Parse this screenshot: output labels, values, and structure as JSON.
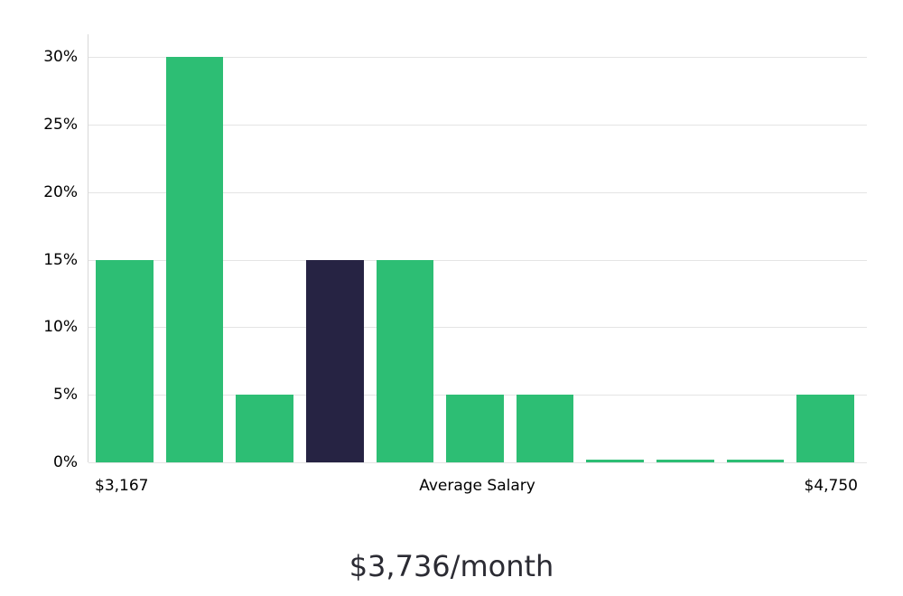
{
  "chart_data": {
    "type": "bar",
    "title": "$3,736/month",
    "x_axis_labels": {
      "left": "$3,167",
      "center": "Average Salary",
      "right": "$4,750"
    },
    "values": [
      15,
      30,
      5,
      15,
      15,
      5,
      5,
      0.2,
      0.2,
      0.2,
      5
    ],
    "highlight_index": 3,
    "yticks": [
      0,
      5,
      10,
      15,
      20,
      25,
      30
    ],
    "ytick_suffix": "%",
    "ylim": [
      0,
      31.7
    ],
    "grid": true,
    "legend": "none",
    "colors": {
      "bar": "#2dbe74",
      "highlight": "#262343",
      "grid": "#e4e4e4",
      "axis": "#d8d8d8",
      "tick_text": "#000000",
      "title_text": "#2b2b33"
    }
  }
}
